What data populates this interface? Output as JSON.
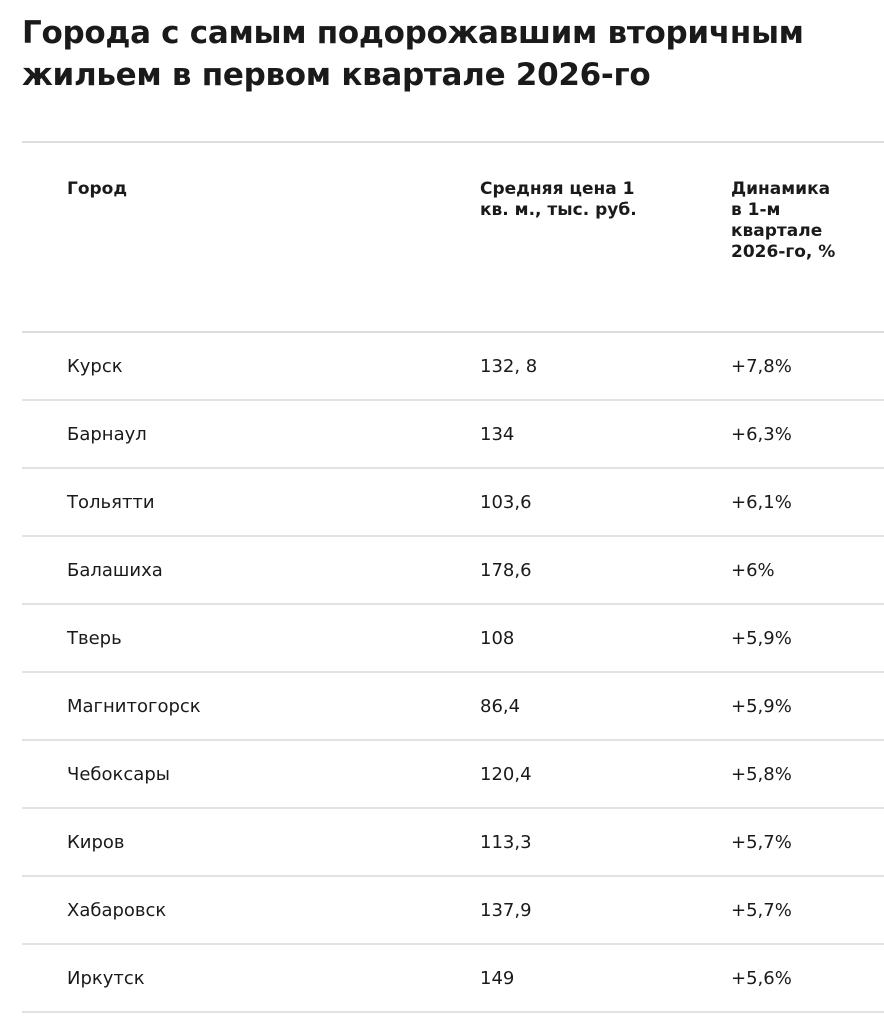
{
  "header": {
    "title": "Города с самым подорожавшим вторичным жильем в первом квартале 2026-го"
  },
  "table": {
    "columns": [
      "Город",
      "Средняя цена 1 кв. м., тыс. руб.",
      "Динамика в 1-м квартале 2026-го, %"
    ],
    "rows": [
      [
        "Курск",
        "132, 8",
        "+7,8%"
      ],
      [
        "Барнаул",
        "134",
        "+6,3%"
      ],
      [
        "Тольятти",
        "103,6",
        "+6,1%"
      ],
      [
        "Балашиха",
        "178,6",
        "+6%"
      ],
      [
        "Тверь",
        "108",
        "+5,9%"
      ],
      [
        "Магнитогорск",
        "86,4",
        "+5,9%"
      ],
      [
        "Чебоксары",
        "120,4",
        "+5,8%"
      ],
      [
        "Киров",
        "113,3",
        "+5,7%"
      ],
      [
        "Хабаровск",
        "137,9",
        "+5,7%"
      ],
      [
        "Иркутск",
        "149",
        "+5,6%"
      ]
    ]
  }
}
